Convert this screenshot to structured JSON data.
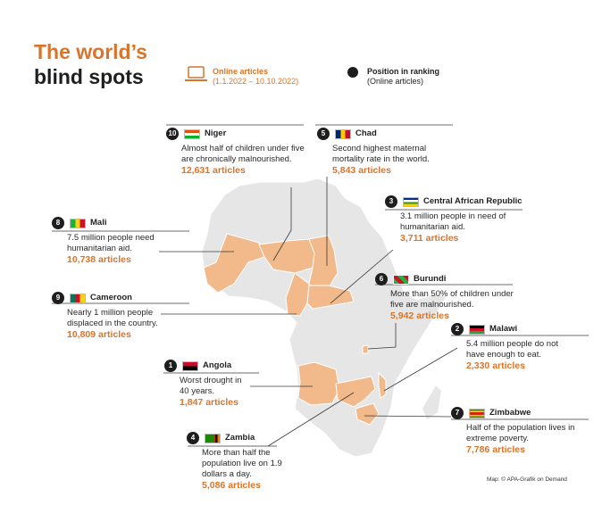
{
  "title": {
    "line1": "The world’s",
    "line2": "blind spots"
  },
  "legend": {
    "online_label": "Online articles",
    "online_range": "(1.1.2022 – 10.10.2022)",
    "rank_label": "Position in ranking",
    "rank_sub": "(Online articles)"
  },
  "colors": {
    "accent": "#d9742a",
    "highlight": "#f2b98a",
    "land": "#e6e6e6",
    "border": "#ffffff",
    "badge": "#1e1e1e"
  },
  "cards": [
    {
      "rank": "10",
      "country": "Niger",
      "description": "Almost half of children under five are chronically malnourished.",
      "articles": "12,631 articles"
    },
    {
      "rank": "5",
      "country": "Chad",
      "description": "Second highest maternal mortality rate in the world.",
      "articles": "5,843 articles"
    },
    {
      "rank": "3",
      "country": "Central African Republic",
      "description": "3.1 million people in need of humanitarian aid.",
      "articles": "3,711 articles"
    },
    {
      "rank": "8",
      "country": "Mali",
      "description": "7.5 million people need humanitarian aid.",
      "articles": "10,738 articles"
    },
    {
      "rank": "6",
      "country": "Burundi",
      "description": "More than 50% of children under five are malnourished.",
      "articles": "5,942 articles"
    },
    {
      "rank": "9",
      "country": "Cameroon",
      "description": "Nearly 1 million people displaced in the country.",
      "articles": "10,809 articles"
    },
    {
      "rank": "2",
      "country": "Malawi",
      "description": "5.4 million people do not have enough to eat.",
      "articles": "2,330 articles"
    },
    {
      "rank": "1",
      "country": "Angola",
      "description": "Worst drought in 40 years.",
      "articles": "1,847 articles"
    },
    {
      "rank": "7",
      "country": "Zimbabwe",
      "description": "Half of the population lives in extreme poverty.",
      "articles": "7,786 articles"
    },
    {
      "rank": "4",
      "country": "Zambia",
      "description": "More than half the population live on 1.9 dollars a day.",
      "articles": "5,086 articles"
    }
  ],
  "credit": "Map: © APA-Grafik on Demand"
}
